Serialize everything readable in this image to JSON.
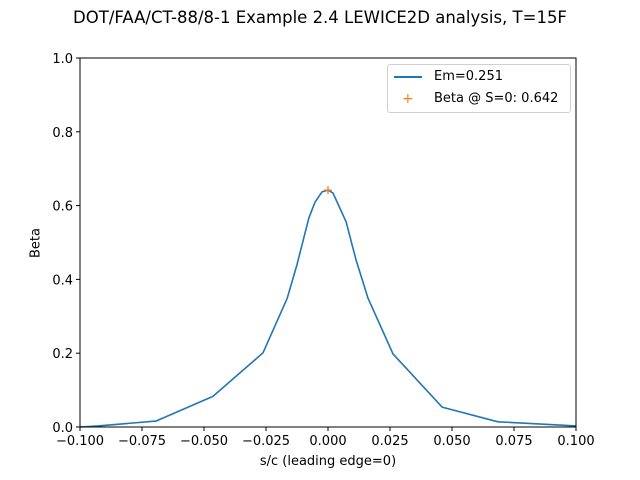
{
  "chart_data": {
    "type": "line",
    "title": "DOT/FAA/CT-88/8-1 Example 2.4 LEWICE2D analysis, T=15F",
    "xlabel": "s/c (leading edge=0)",
    "ylabel": "Beta",
    "xlim": [
      -0.1,
      0.1
    ],
    "ylim": [
      0.0,
      1.0
    ],
    "xticks": [
      "-0.100",
      "-0.075",
      "-0.050",
      "-0.025",
      "0.000",
      "0.025",
      "0.050",
      "0.075",
      "0.100"
    ],
    "yticks": [
      "0.0",
      "0.2",
      "0.4",
      "0.6",
      "0.8",
      "1.0"
    ],
    "grid": false,
    "legend_position": "upper right",
    "series": [
      {
        "name": "Em=0.251",
        "type": "line",
        "color": "#1f77b4",
        "x": [
          -0.1,
          -0.0927,
          -0.0694,
          -0.0464,
          -0.0262,
          -0.0165,
          -0.0125,
          -0.0077,
          -0.0052,
          -0.0024,
          0.0,
          0.002,
          0.0044,
          0.0073,
          0.0113,
          0.0161,
          0.0262,
          0.046,
          0.0685,
          0.1
        ],
        "y": [
          0.0,
          0.003,
          0.016,
          0.083,
          0.201,
          0.348,
          0.44,
          0.567,
          0.61,
          0.637,
          0.642,
          0.634,
          0.599,
          0.556,
          0.453,
          0.35,
          0.198,
          0.054,
          0.014,
          0.003
        ]
      },
      {
        "name": "Beta @ S=0: 0.642",
        "type": "scatter",
        "marker": "+",
        "color": "#ff7f0e",
        "x": [
          0.0
        ],
        "y": [
          0.642
        ]
      }
    ]
  },
  "legend": {
    "entries": [
      "Em=0.251",
      "Beta @ S=0: 0.642"
    ]
  }
}
